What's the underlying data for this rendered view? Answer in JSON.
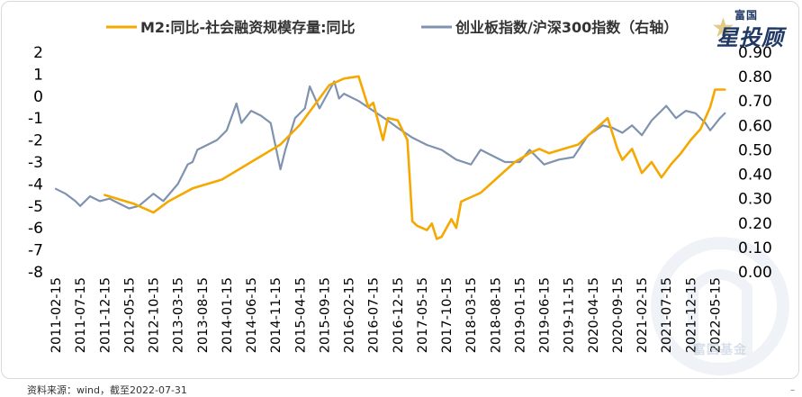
{
  "source_note": "资料来源：wind，截至2022-07-31",
  "corner_mark": "–",
  "logo": {
    "top_text": "富国",
    "main_text": "星投顾",
    "star": "★"
  },
  "watermark_text": "富国基金",
  "colors": {
    "m2_series": "#F5A800",
    "index_series": "#7F93AF",
    "axis_text": "#000000",
    "frame": "#d9d9d9",
    "logo": "#1f3864",
    "watermark": "#c9d3e2"
  },
  "chart_data": {
    "type": "line",
    "legend_position": "top",
    "grid": false,
    "x_tick_labels": [
      "2011-02-15",
      "2011-07-15",
      "2011-12-15",
      "2012-05-15",
      "2012-10-15",
      "2013-03-15",
      "2013-08-15",
      "2014-01-15",
      "2014-06-15",
      "2014-11-15",
      "2015-04-15",
      "2015-09-15",
      "2016-02-15",
      "2016-07-15",
      "2016-12-15",
      "2017-05-15",
      "2017-10-15",
      "2018-03-15",
      "2018-08-15",
      "2019-01-15",
      "2019-06-15",
      "2019-11-15",
      "2020-04-15",
      "2020-09-15",
      "2021-02-15",
      "2021-07-15",
      "2021-12-15",
      "2022-05-15"
    ],
    "y_left": {
      "ticks": [
        "2",
        "1",
        "0",
        "-1",
        "-2",
        "-3",
        "-4",
        "-5",
        "-6",
        "-7",
        "-8"
      ],
      "ylim": [
        -8,
        2
      ]
    },
    "y_right": {
      "ticks": [
        "0.90",
        "0.80",
        "0.70",
        "0.60",
        "0.50",
        "0.40",
        "0.30",
        "0.20",
        "0.10",
        "0.00"
      ],
      "ylim": [
        0.0,
        0.9
      ]
    },
    "series": [
      {
        "name": "M2:同比-社会融资规模存量:同比",
        "axis": "left",
        "points": [
          [
            "2011-12",
            -4.5
          ],
          [
            "2012-03",
            -4.7
          ],
          [
            "2012-06",
            -4.9
          ],
          [
            "2012-10",
            -5.3
          ],
          [
            "2013-01",
            -4.8
          ],
          [
            "2013-06",
            -4.2
          ],
          [
            "2013-12",
            -3.8
          ],
          [
            "2014-06",
            -3.0
          ],
          [
            "2014-12",
            -2.2
          ],
          [
            "2015-04",
            -1.3
          ],
          [
            "2015-07",
            -0.4
          ],
          [
            "2015-10",
            0.5
          ],
          [
            "2016-01",
            0.8
          ],
          [
            "2016-04",
            0.9
          ],
          [
            "2016-06",
            -0.5
          ],
          [
            "2016-07",
            -0.3
          ],
          [
            "2016-09",
            -2.0
          ],
          [
            "2016-10",
            -1.0
          ],
          [
            "2016-12",
            -1.1
          ],
          [
            "2017-02",
            -2.0
          ],
          [
            "2017-03",
            -5.7
          ],
          [
            "2017-04",
            -5.9
          ],
          [
            "2017-06",
            -6.1
          ],
          [
            "2017-07",
            -5.8
          ],
          [
            "2017-08",
            -6.5
          ],
          [
            "2017-09",
            -6.4
          ],
          [
            "2017-11",
            -5.6
          ],
          [
            "2017-12",
            -6.0
          ],
          [
            "2018-01",
            -4.8
          ],
          [
            "2018-03",
            -4.6
          ],
          [
            "2018-05",
            -4.4
          ],
          [
            "2018-07",
            -4.0
          ],
          [
            "2018-09",
            -3.6
          ],
          [
            "2018-12",
            -3.0
          ],
          [
            "2019-03",
            -2.6
          ],
          [
            "2019-05",
            -2.4
          ],
          [
            "2019-07",
            -2.6
          ],
          [
            "2019-10",
            -2.4
          ],
          [
            "2020-01",
            -2.2
          ],
          [
            "2020-04",
            -1.6
          ],
          [
            "2020-07",
            -1.0
          ],
          [
            "2020-09",
            -2.4
          ],
          [
            "2020-10",
            -2.9
          ],
          [
            "2020-12",
            -2.4
          ],
          [
            "2021-02",
            -3.5
          ],
          [
            "2021-04",
            -3.0
          ],
          [
            "2021-06",
            -3.7
          ],
          [
            "2021-08",
            -3.1
          ],
          [
            "2021-10",
            -2.6
          ],
          [
            "2021-12",
            -2.0
          ],
          [
            "2022-02",
            -1.5
          ],
          [
            "2022-04",
            -0.5
          ],
          [
            "2022-05",
            0.3
          ],
          [
            "2022-07",
            0.3
          ]
        ]
      },
      {
        "name": "创业板指数/沪深300指数（右轴）",
        "axis": "right",
        "points": [
          [
            "2011-02",
            0.34
          ],
          [
            "2011-04",
            0.32
          ],
          [
            "2011-06",
            0.29
          ],
          [
            "2011-07",
            0.27
          ],
          [
            "2011-09",
            0.31
          ],
          [
            "2011-11",
            0.29
          ],
          [
            "2012-01",
            0.3
          ],
          [
            "2012-03",
            0.28
          ],
          [
            "2012-05",
            0.26
          ],
          [
            "2012-07",
            0.27
          ],
          [
            "2012-10",
            0.32
          ],
          [
            "2012-12",
            0.29
          ],
          [
            "2013-03",
            0.36
          ],
          [
            "2013-05",
            0.44
          ],
          [
            "2013-06",
            0.45
          ],
          [
            "2013-07",
            0.5
          ],
          [
            "2013-09",
            0.52
          ],
          [
            "2013-11",
            0.54
          ],
          [
            "2014-01",
            0.58
          ],
          [
            "2014-03",
            0.69
          ],
          [
            "2014-04",
            0.61
          ],
          [
            "2014-06",
            0.66
          ],
          [
            "2014-08",
            0.64
          ],
          [
            "2014-10",
            0.61
          ],
          [
            "2014-12",
            0.42
          ],
          [
            "2015-01",
            0.5
          ],
          [
            "2015-03",
            0.63
          ],
          [
            "2015-05",
            0.67
          ],
          [
            "2015-06",
            0.76
          ],
          [
            "2015-08",
            0.67
          ],
          [
            "2015-11",
            0.78
          ],
          [
            "2015-12",
            0.71
          ],
          [
            "2016-01",
            0.73
          ],
          [
            "2016-04",
            0.7
          ],
          [
            "2016-07",
            0.66
          ],
          [
            "2016-10",
            0.62
          ],
          [
            "2016-12",
            0.59
          ],
          [
            "2017-03",
            0.55
          ],
          [
            "2017-06",
            0.52
          ],
          [
            "2017-09",
            0.5
          ],
          [
            "2017-12",
            0.46
          ],
          [
            "2018-03",
            0.44
          ],
          [
            "2018-05",
            0.5
          ],
          [
            "2018-08",
            0.47
          ],
          [
            "2018-10",
            0.45
          ],
          [
            "2019-01",
            0.45
          ],
          [
            "2019-03",
            0.5
          ],
          [
            "2019-06",
            0.44
          ],
          [
            "2019-09",
            0.46
          ],
          [
            "2019-12",
            0.47
          ],
          [
            "2020-03",
            0.56
          ],
          [
            "2020-06",
            0.6
          ],
          [
            "2020-08",
            0.59
          ],
          [
            "2020-10",
            0.57
          ],
          [
            "2020-12",
            0.6
          ],
          [
            "2021-02",
            0.56
          ],
          [
            "2021-04",
            0.62
          ],
          [
            "2021-07",
            0.68
          ],
          [
            "2021-09",
            0.63
          ],
          [
            "2021-11",
            0.66
          ],
          [
            "2022-01",
            0.65
          ],
          [
            "2022-03",
            0.61
          ],
          [
            "2022-04",
            0.58
          ],
          [
            "2022-06",
            0.63
          ],
          [
            "2022-07",
            0.65
          ]
        ]
      }
    ]
  }
}
